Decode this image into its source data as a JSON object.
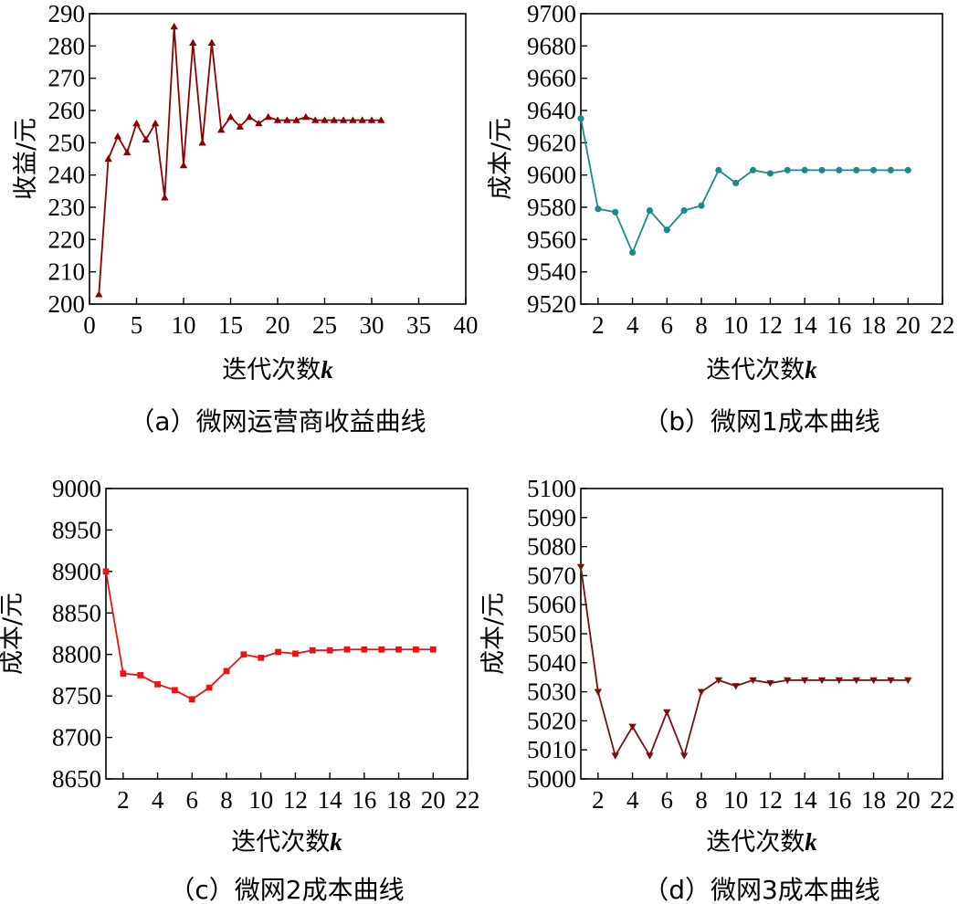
{
  "chart_data": [
    {
      "id": "a",
      "type": "line",
      "caption": "（a）微网运营商收益曲线",
      "xlabel": "迭代次数",
      "xlabel_var": "k",
      "ylabel": "收益/元",
      "xlim": [
        0,
        40
      ],
      "ylim": [
        200,
        290
      ],
      "xticks": [
        0,
        5,
        10,
        15,
        20,
        25,
        30,
        35,
        40
      ],
      "yticks": [
        200,
        210,
        220,
        230,
        240,
        250,
        260,
        270,
        280,
        290
      ],
      "color": "#8b0000",
      "marker": "triangle-up",
      "series": [
        {
          "name": "收益",
          "x": [
            1,
            2,
            3,
            4,
            5,
            6,
            7,
            8,
            9,
            10,
            11,
            12,
            13,
            14,
            15,
            16,
            17,
            18,
            19,
            20,
            21,
            22,
            23,
            24,
            25,
            26,
            27,
            28,
            29,
            30,
            31
          ],
          "values": [
            203,
            245,
            252,
            247,
            256,
            251,
            256,
            233,
            286,
            243,
            281,
            250,
            281,
            254,
            258,
            255,
            258,
            256,
            258,
            257,
            257,
            257,
            258,
            257,
            257,
            257,
            257,
            257,
            257,
            257,
            257
          ]
        }
      ]
    },
    {
      "id": "b",
      "type": "line",
      "caption": "（b）微网1成本曲线",
      "xlabel": "迭代次数",
      "xlabel_var": "k",
      "ylabel": "成本/元",
      "xlim": [
        1,
        22
      ],
      "ylim": [
        9520,
        9700
      ],
      "xticks": [
        2,
        4,
        6,
        8,
        10,
        12,
        14,
        16,
        18,
        20,
        22
      ],
      "yticks": [
        9520,
        9540,
        9560,
        9580,
        9600,
        9620,
        9640,
        9660,
        9680,
        9700
      ],
      "color": "#1a8a8a",
      "marker": "circle",
      "series": [
        {
          "name": "成本",
          "x": [
            1,
            2,
            3,
            4,
            5,
            6,
            7,
            8,
            9,
            10,
            11,
            12,
            13,
            14,
            15,
            16,
            17,
            18,
            19,
            20
          ],
          "values": [
            9635,
            9579,
            9577,
            9552,
            9578,
            9566,
            9578,
            9581,
            9603,
            9595,
            9603,
            9601,
            9603,
            9603,
            9603,
            9603,
            9603,
            9603,
            9603,
            9603
          ]
        }
      ]
    },
    {
      "id": "c",
      "type": "line",
      "caption": "（c）微网2成本曲线",
      "xlabel": "迭代次数",
      "xlabel_var": "k",
      "ylabel": "成本/元",
      "xlim": [
        1,
        22
      ],
      "ylim": [
        8650,
        9000
      ],
      "xticks": [
        2,
        4,
        6,
        8,
        10,
        12,
        14,
        16,
        18,
        20,
        22
      ],
      "yticks": [
        8650,
        8700,
        8750,
        8800,
        8850,
        8900,
        8950,
        9000
      ],
      "color": "#ee1111",
      "marker": "square",
      "series": [
        {
          "name": "成本",
          "x": [
            1,
            2,
            3,
            4,
            5,
            6,
            7,
            8,
            9,
            10,
            11,
            12,
            13,
            14,
            15,
            16,
            17,
            18,
            19,
            20
          ],
          "values": [
            8900,
            8777,
            8775,
            8764,
            8757,
            8746,
            8760,
            8780,
            8800,
            8796,
            8803,
            8801,
            8805,
            8805,
            8806,
            8806,
            8806,
            8806,
            8806,
            8806
          ]
        }
      ]
    },
    {
      "id": "d",
      "type": "line",
      "caption": "（d）微网3成本曲线",
      "xlabel": "迭代次数",
      "xlabel_var": "k",
      "ylabel": "成本/元",
      "xlim": [
        1,
        22
      ],
      "ylim": [
        5000,
        5100
      ],
      "xticks": [
        2,
        4,
        6,
        8,
        10,
        12,
        14,
        16,
        18,
        20,
        22
      ],
      "yticks": [
        5000,
        5010,
        5020,
        5030,
        5040,
        5050,
        5060,
        5070,
        5080,
        5090,
        5100
      ],
      "color": "#7a0f0f",
      "marker": "triangle-down",
      "series": [
        {
          "name": "成本",
          "x": [
            1,
            2,
            3,
            4,
            5,
            6,
            7,
            8,
            9,
            10,
            11,
            12,
            13,
            14,
            15,
            16,
            17,
            18,
            19,
            20
          ],
          "values": [
            5073,
            5030,
            5008,
            5018,
            5008,
            5023,
            5008,
            5030,
            5034,
            5032,
            5034,
            5033,
            5034,
            5034,
            5034,
            5034,
            5034,
            5034,
            5034,
            5034
          ]
        }
      ]
    }
  ]
}
